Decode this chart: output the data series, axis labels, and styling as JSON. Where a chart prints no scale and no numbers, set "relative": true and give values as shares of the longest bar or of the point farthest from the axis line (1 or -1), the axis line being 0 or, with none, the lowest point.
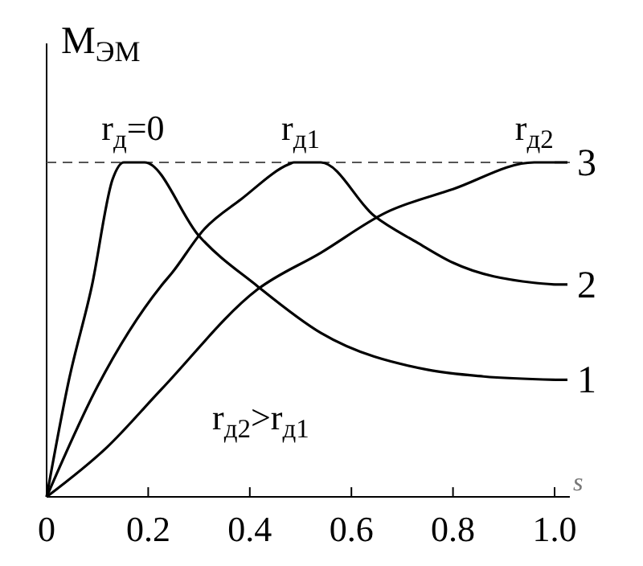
{
  "chart_data": {
    "type": "line",
    "relative": true,
    "ylabel": "M$_{ЭМ}$",
    "xlabel": "s",
    "xlim": [
      0,
      1.03
    ],
    "xticks": [
      0,
      0.2,
      0.4,
      0.6,
      0.8,
      {
        "value": 1,
        "label": "1.0"
      }
    ],
    "series": [
      {
        "name": "1",
        "color": "#000000",
        "x": [
          0,
          0.044,
          0.089,
          0.13,
          0.152,
          0.193,
          0.3,
          0.415,
          0.54,
          0.75,
          0.86,
          1.0
        ],
        "values": [
          0,
          0.35,
          0.63,
          0.95,
          1,
          1,
          0.78,
          0.63,
          0.49,
          0.38,
          0.36,
          0.35
        ]
      },
      {
        "name": "2",
        "color": "#000000",
        "x": [
          0,
          0.1,
          0.225,
          0.247,
          0.31,
          0.383,
          0.478,
          0.487,
          0.54,
          0.645,
          0.73,
          0.8,
          0.96,
          1.0
        ],
        "values": [
          0,
          0.33,
          0.63,
          0.67,
          0.8,
          0.89,
          0.995,
          1,
          1,
          0.84,
          0.76,
          0.7,
          0.64,
          0.635
        ]
      },
      {
        "name": "3",
        "color": "#000000",
        "x": [
          0,
          0.12,
          0.225,
          0.415,
          0.54,
          0.668,
          0.8,
          0.96,
          1.0
        ],
        "values": [
          0,
          0.15,
          0.32,
          0.62,
          0.73,
          0.85,
          0.92,
          1,
          1
        ]
      }
    ],
    "ref_lines": [
      {
        "axis": "y",
        "value": 1,
        "color": "#555555",
        "line_style": "dashed"
      }
    ],
    "annotations": [
      {
        "text": "r$_{д}$=0",
        "x": 0.17,
        "y": 1
      },
      {
        "text": "r$_{д1}$",
        "x": 0.5,
        "y": 1
      },
      {
        "text": "r$_{д2}$",
        "x": 0.96,
        "y": 1
      },
      "r$_{д2}$>r$_{д1}$"
    ],
    "grid": false,
    "legend": "right",
    "line_style": "solid",
    "marker": "none"
  }
}
